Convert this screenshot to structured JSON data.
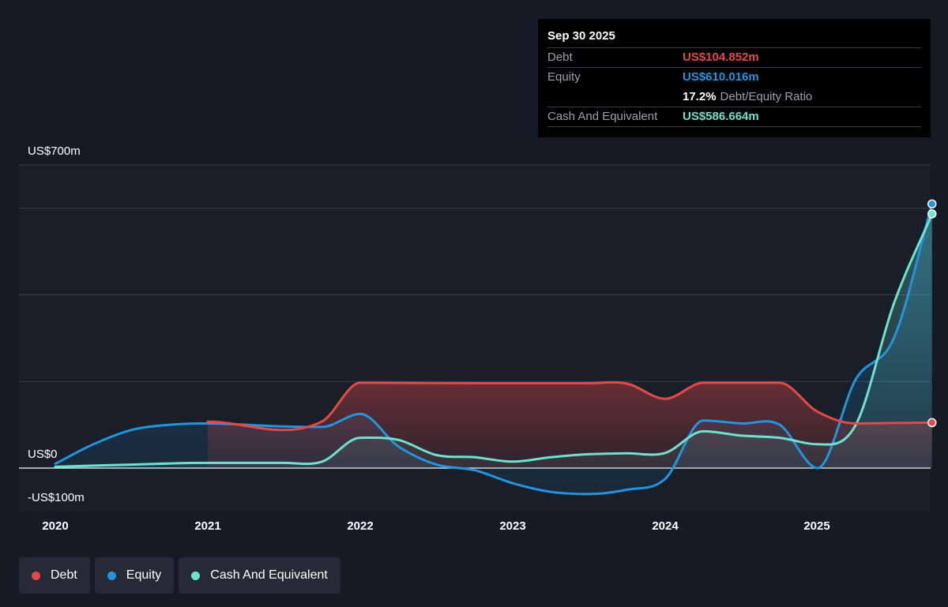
{
  "tooltip": {
    "date": "Sep 30 2025",
    "debt_label": "Debt",
    "debt_value": "US$104.852m",
    "equity_label": "Equity",
    "equity_value": "US$610.016m",
    "ratio_value": "17.2%",
    "ratio_label": "Debt/Equity Ratio",
    "cash_label": "Cash And Equivalent",
    "cash_value": "US$586.664m"
  },
  "legend": [
    {
      "label": "Debt",
      "color": "#e64848"
    },
    {
      "label": "Equity",
      "color": "#2394df"
    },
    {
      "label": "Cash And Equivalent",
      "color": "#6ce2cf"
    }
  ],
  "chart_data": {
    "type": "line",
    "ylim": [
      -100,
      700
    ],
    "y_tick_labels": [
      "US$700m",
      "US$0",
      "-US$100m"
    ],
    "x_tick_labels": [
      "2020",
      "2021",
      "2022",
      "2023",
      "2024",
      "2025"
    ],
    "xlim": [
      2020,
      2025.75
    ],
    "series": [
      {
        "name": "Debt",
        "color": "#e64848",
        "x": [
          2021,
          2021.75,
          2022,
          2022.75,
          2023.5,
          2023.75,
          2024,
          2024.25,
          2024.75,
          2025,
          2025.25,
          2025.5,
          2025.75
        ],
        "values": [
          107,
          108,
          197,
          196,
          196,
          195,
          160,
          197,
          197,
          130,
          103,
          104,
          105
        ]
      },
      {
        "name": "Equity",
        "color": "#2394df",
        "x": [
          2020,
          2020.25,
          2020.5,
          2020.75,
          2021,
          2021.25,
          2021.5,
          2021.75,
          2022,
          2022.25,
          2022.5,
          2022.75,
          2023,
          2023.25,
          2023.5,
          2023.75,
          2024,
          2024.25,
          2024.5,
          2024.75,
          2025,
          2025.25,
          2025.5,
          2025.75
        ],
        "values": [
          10,
          55,
          88,
          100,
          103,
          100,
          96,
          95,
          125,
          50,
          8,
          -5,
          -35,
          -55,
          -60,
          -50,
          -25,
          110,
          103,
          100,
          0,
          205,
          300,
          610
        ]
      },
      {
        "name": "Cash And Equivalent",
        "color": "#6ce2cf",
        "x": [
          2020,
          2020.5,
          2021,
          2021.5,
          2021.75,
          2022,
          2022.25,
          2022.5,
          2022.75,
          2023,
          2023.25,
          2023.5,
          2023.75,
          2024,
          2024.25,
          2024.5,
          2024.75,
          2025,
          2025.25,
          2025.5,
          2025.75
        ],
        "values": [
          3,
          8,
          12,
          12,
          15,
          70,
          65,
          30,
          25,
          15,
          25,
          32,
          34,
          35,
          85,
          75,
          70,
          55,
          100,
          380,
          587
        ]
      }
    ]
  }
}
